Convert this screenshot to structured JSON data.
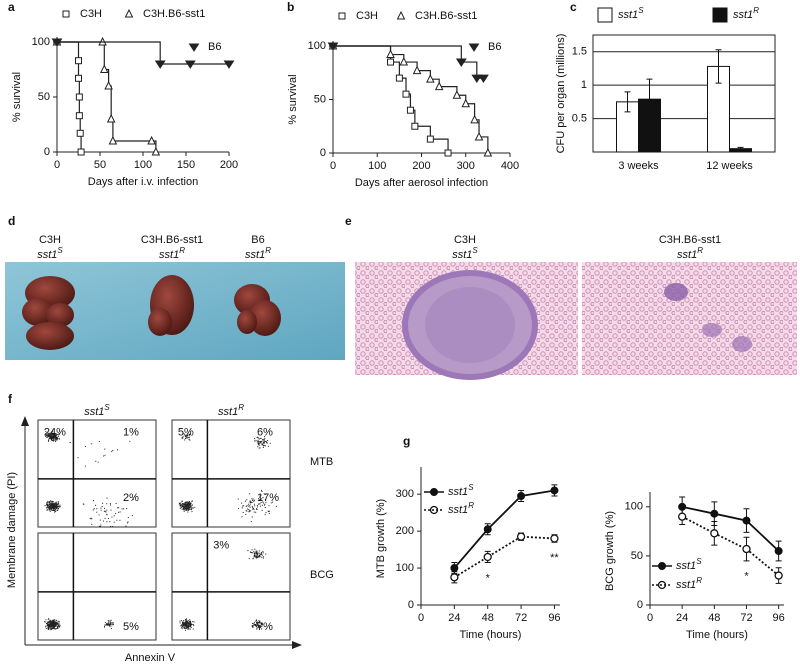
{
  "chart_data": [
    {
      "type": "line",
      "step": true,
      "x_label": "Days after i.v. infection",
      "y_label": "% survival",
      "xlim": [
        0,
        200
      ],
      "xticks": [
        0,
        50,
        100,
        150,
        200
      ],
      "ylim": [
        0,
        100
      ],
      "yticks": [
        0,
        50,
        100
      ],
      "series": [
        {
          "name": "C3H",
          "marker": "square-open",
          "color": "#222",
          "x": [
            0,
            25,
            25,
            26,
            26,
            27,
            28
          ],
          "values": [
            100,
            83,
            67,
            50,
            33,
            17,
            0
          ]
        },
        {
          "name": "C3H.B6-sst1",
          "marker": "triangle-open",
          "color": "#222",
          "x": [
            0,
            53,
            55,
            60,
            63,
            65,
            110,
            115
          ],
          "values": [
            100,
            100,
            75,
            60,
            30,
            10,
            10,
            0
          ]
        },
        {
          "name": "B6",
          "marker": "triangle-down-filled",
          "color": "#222",
          "x": [
            0,
            120,
            155,
            200
          ],
          "values": [
            100,
            80,
            80,
            80
          ]
        }
      ]
    },
    {
      "type": "line",
      "step": true,
      "x_label": "Days after aerosol infection",
      "y_label": "% survival",
      "xlim": [
        0,
        400
      ],
      "xticks": [
        0,
        100,
        200,
        300,
        400
      ],
      "ylim": [
        0,
        100
      ],
      "yticks": [
        0,
        50,
        100
      ],
      "series": [
        {
          "name": "C3H",
          "marker": "square-open",
          "color": "#222",
          "x": [
            0,
            130,
            150,
            165,
            175,
            185,
            220,
            260
          ],
          "values": [
            100,
            85,
            70,
            55,
            40,
            25,
            13,
            0
          ]
        },
        {
          "name": "C3H.B6-sst1",
          "marker": "triangle-open",
          "color": "#222",
          "x": [
            0,
            130,
            160,
            190,
            220,
            240,
            280,
            300,
            320,
            330,
            350
          ],
          "values": [
            100,
            92,
            85,
            77,
            69,
            62,
            54,
            46,
            31,
            15,
            0
          ]
        },
        {
          "name": "B6",
          "marker": "triangle-down-filled",
          "color": "#222",
          "x": [
            0,
            290,
            325,
            340
          ],
          "values": [
            100,
            85,
            70,
            70
          ]
        }
      ]
    },
    {
      "type": "bar",
      "y_label": "CFU per organ (millions)",
      "categories": [
        "3 weeks",
        "12 weeks"
      ],
      "ylim": [
        0,
        1.75
      ],
      "yticks": [
        0.5,
        1,
        1.5
      ],
      "grid": true,
      "series": [
        {
          "name": "sst1",
          "name_sup": "S",
          "color": "#ffffff",
          "values": [
            0.75,
            1.28
          ],
          "errors": [
            0.15,
            0.25
          ]
        },
        {
          "name": "sst1",
          "name_sup": "R",
          "color": "#111111",
          "values": [
            0.79,
            0.05
          ],
          "errors": [
            0.3,
            0.02
          ]
        }
      ]
    },
    {
      "type": "line",
      "x_label": "Time (hours)",
      "y_label": "MTB growth (%)",
      "legend": "upper left",
      "xlim": [
        0,
        100
      ],
      "xticks": [
        0,
        24,
        48,
        72,
        96
      ],
      "ylim": [
        0,
        360
      ],
      "yticks": [
        0,
        100,
        200,
        300
      ],
      "series": [
        {
          "name": "sst1",
          "name_sup": "S",
          "marker": "circle-filled",
          "dash": false,
          "color": "#111",
          "x": [
            24,
            48,
            72,
            96
          ],
          "values": [
            100,
            205,
            295,
            310
          ],
          "errors": [
            15,
            15,
            15,
            15
          ]
        },
        {
          "name": "sst1",
          "name_sup": "R",
          "marker": "circle-open",
          "dash": true,
          "color": "#111",
          "x": [
            24,
            48,
            72,
            96
          ],
          "values": [
            75,
            130,
            185,
            180
          ],
          "errors": [
            15,
            15,
            10,
            10
          ]
        }
      ],
      "annotations": [
        {
          "text": "*",
          "x": 48
        },
        {
          "text": "**",
          "x": 96
        }
      ]
    },
    {
      "type": "line",
      "x_label": "Time (hours)",
      "y_label": "BCG growth (%)",
      "legend": "lower left",
      "xlim": [
        0,
        100
      ],
      "xticks": [
        0,
        24,
        48,
        72,
        96
      ],
      "ylim": [
        0,
        110
      ],
      "yticks": [
        0,
        50,
        100
      ],
      "series": [
        {
          "name": "sst1",
          "name_sup": "S",
          "marker": "circle-filled",
          "dash": false,
          "color": "#111",
          "x": [
            24,
            48,
            72,
            96
          ],
          "values": [
            100,
            93,
            86,
            55
          ],
          "errors": [
            10,
            12,
            12,
            10
          ]
        },
        {
          "name": "sst1",
          "name_sup": "R",
          "marker": "circle-open",
          "dash": true,
          "color": "#111",
          "x": [
            24,
            48,
            72,
            96
          ],
          "values": [
            90,
            73,
            57,
            30
          ],
          "errors": [
            8,
            12,
            12,
            8
          ]
        }
      ],
      "annotations": [
        {
          "text": "*",
          "x": 72
        }
      ]
    }
  ],
  "figure": {
    "panel_labels": [
      "a",
      "b",
      "c",
      "d",
      "e",
      "f",
      "g"
    ],
    "d": [
      {
        "strain": "C3H",
        "allele": "sst1",
        "sup": "S"
      },
      {
        "strain": "C3H.B6-sst1",
        "allele": "sst1",
        "sup": "R"
      },
      {
        "strain": "B6",
        "allele": "sst1",
        "sup": "R"
      }
    ],
    "e": [
      {
        "strain": "C3H",
        "allele": "sst1",
        "sup": "S"
      },
      {
        "strain": "C3H.B6-sst1",
        "allele": "sst1",
        "sup": "R"
      }
    ],
    "f": {
      "columns": [
        {
          "allele": "sst1",
          "sup": "S"
        },
        {
          "allele": "sst1",
          "sup": "R"
        }
      ],
      "rows": [
        "MTB",
        "BCG"
      ],
      "percentages": [
        [
          "24%",
          "1%",
          "2%"
        ],
        [
          "5%",
          "6%",
          "17%"
        ],
        [
          "5%"
        ],
        [
          "3%",
          "7%"
        ]
      ],
      "y_label": "Membrane damage (PI)",
      "x_label": "Annexin V"
    }
  }
}
